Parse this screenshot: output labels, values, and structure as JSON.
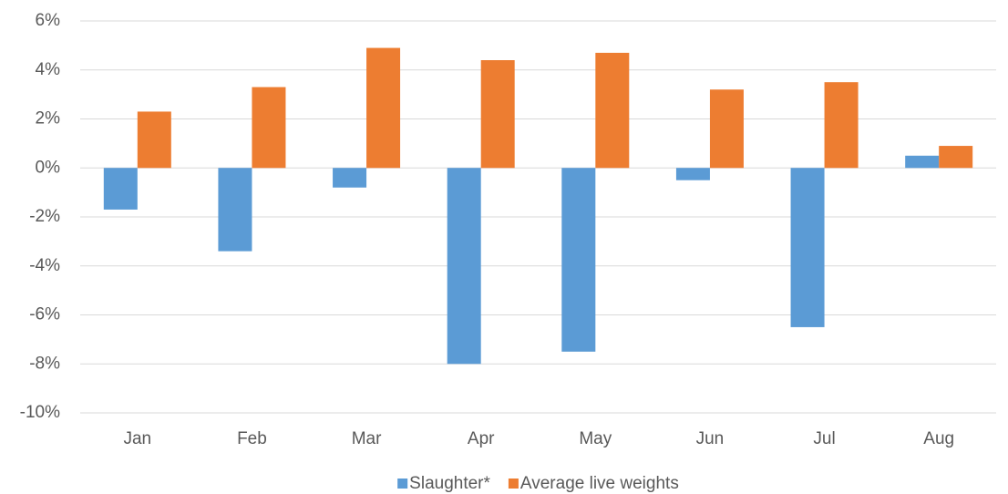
{
  "chart_data": {
    "type": "bar",
    "categories": [
      "Jan",
      "Feb",
      "Mar",
      "Apr",
      "May",
      "Jun",
      "Jul",
      "Aug"
    ],
    "series": [
      {
        "name": "Slaughter*",
        "color": "#5b9bd5",
        "values": [
          -1.7,
          -3.4,
          -0.8,
          -8.0,
          -7.5,
          -0.5,
          -6.5,
          0.5
        ]
      },
      {
        "name": "Average live weights",
        "color": "#ed7d31",
        "values": [
          2.3,
          3.3,
          4.9,
          4.4,
          4.7,
          3.2,
          3.5,
          0.9
        ]
      }
    ],
    "ylim": [
      -10,
      6
    ],
    "yticks": [
      {
        "value": -10,
        "label": "-10%"
      },
      {
        "value": -8,
        "label": "-8%"
      },
      {
        "value": -6,
        "label": "-6%"
      },
      {
        "value": -4,
        "label": "-4%"
      },
      {
        "value": -2,
        "label": "-2%"
      },
      {
        "value": 0,
        "label": "0%"
      },
      {
        "value": 2,
        "label": "2%"
      },
      {
        "value": 4,
        "label": "4%"
      },
      {
        "value": 6,
        "label": "6%"
      }
    ],
    "grid": true,
    "legend": "bottom"
  }
}
